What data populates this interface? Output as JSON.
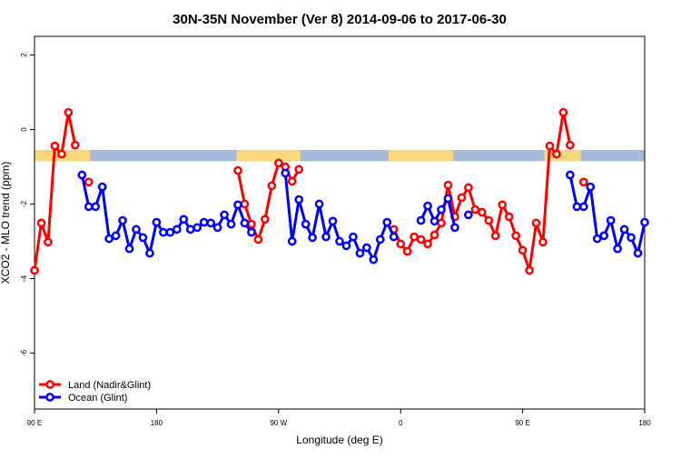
{
  "chart_data": {
    "type": "line",
    "title": "30N-35N November (Ver 8)   2014-09-06 to 2017-06-30",
    "x_label": "Longitude (deg E)",
    "y_label": "XCO2 - MLO trend (ppm)",
    "xlim": [
      90,
      540
    ],
    "xticks": [
      {
        "value": 90,
        "label": "90 E"
      },
      {
        "value": 180,
        "label": "180"
      },
      {
        "value": 270,
        "label": "90 W"
      },
      {
        "value": 360,
        "label": "0"
      },
      {
        "value": 450,
        "label": "90 E"
      },
      {
        "value": 540,
        "label": "180"
      }
    ],
    "ylim": [
      -7.5,
      2.5
    ],
    "yticks": [
      2,
      0,
      -2,
      -4,
      -6
    ],
    "legend": "bottom-left",
    "surface_band": {
      "ylim": [
        -0.85,
        -0.55
      ],
      "ocean_color": "#a7b9d8",
      "land_color": "#f8d87a",
      "land": [
        [
          90,
          131
        ],
        [
          239,
          286
        ],
        [
          351,
          399
        ],
        [
          466,
          493
        ]
      ]
    },
    "x": [
      90,
      95,
      100,
      105,
      110,
      115,
      120,
      125,
      130,
      135,
      140,
      145,
      150,
      155,
      160,
      165,
      170,
      175,
      180,
      185,
      190,
      195,
      200,
      205,
      210,
      215,
      220,
      225,
      230,
      235,
      240,
      245,
      250,
      255,
      260,
      265,
      270,
      275,
      280,
      285,
      290,
      295,
      300,
      305,
      310,
      315,
      320,
      325,
      330,
      335,
      340,
      345,
      350,
      355,
      360,
      365,
      370,
      375,
      380,
      385,
      390,
      395,
      400,
      405,
      410,
      415,
      420,
      425,
      430,
      435,
      440,
      445,
      450,
      455,
      460,
      465,
      470,
      475,
      480,
      485,
      490,
      495,
      500,
      505,
      510,
      515,
      520,
      525,
      530,
      535,
      540
    ],
    "series": [
      {
        "name": "Land (Nadir&Glint)",
        "color": "#ff0000",
        "values": [
          -3.78,
          -2.51,
          -3.02,
          -0.44,
          -0.66,
          0.46,
          -0.42,
          null,
          -1.41,
          null,
          null,
          null,
          null,
          null,
          null,
          null,
          null,
          null,
          null,
          null,
          null,
          null,
          null,
          null,
          null,
          null,
          null,
          null,
          null,
          null,
          -1.1,
          -2.0,
          -2.54,
          -2.95,
          -2.41,
          -1.51,
          -0.9,
          -1.0,
          -1.39,
          -1.07,
          null,
          null,
          null,
          null,
          null,
          null,
          null,
          null,
          null,
          null,
          null,
          null,
          null,
          -2.68,
          -3.07,
          -3.27,
          -2.88,
          -2.95,
          -3.07,
          -2.83,
          -2.51,
          -1.49,
          -2.34,
          -1.83,
          -1.56,
          -2.15,
          -2.22,
          -2.44,
          -2.85,
          -2.02,
          -2.34,
          -2.85,
          -3.24,
          -3.78,
          -2.51,
          -3.02,
          -0.44,
          -0.66,
          0.46,
          -0.42,
          null,
          -1.41,
          null,
          null,
          null,
          null,
          null,
          null,
          null,
          null,
          null
        ]
      },
      {
        "name": "Ocean (Glint)",
        "color": "#0000ff",
        "values": [
          null,
          null,
          null,
          null,
          null,
          null,
          null,
          -1.22,
          -2.07,
          -2.07,
          -1.54,
          -2.93,
          -2.85,
          -2.44,
          -3.2,
          -2.68,
          -2.9,
          -3.32,
          -2.49,
          -2.76,
          -2.76,
          -2.68,
          -2.41,
          -2.68,
          -2.63,
          -2.49,
          -2.51,
          -2.63,
          -2.29,
          -2.54,
          -2.02,
          -2.51,
          -2.76,
          null,
          null,
          null,
          null,
          -1.17,
          -3.0,
          -1.88,
          -2.54,
          -2.9,
          -2.0,
          -2.88,
          -2.46,
          -3.0,
          -3.12,
          -2.88,
          -3.32,
          -3.17,
          -3.49,
          -2.95,
          -2.49,
          -2.88,
          null,
          null,
          null,
          -2.44,
          -2.05,
          -2.46,
          -2.15,
          -1.85,
          -2.63,
          null,
          -2.29,
          null,
          null,
          null,
          null,
          null,
          null,
          null,
          null,
          null,
          null,
          null,
          null,
          null,
          null,
          -1.22,
          -2.07,
          -2.07,
          -1.54,
          -2.93,
          -2.85,
          -2.44,
          -3.2,
          -2.68,
          -2.9,
          -3.32,
          -2.49
        ]
      }
    ]
  }
}
